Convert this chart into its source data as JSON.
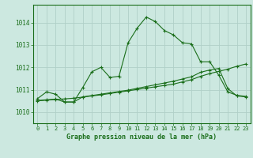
{
  "bg_color": "#cce8e0",
  "grid_color": "#b0d0c8",
  "line_color": "#1a6e1a",
  "title": "Graphe pression niveau de la mer (hPa)",
  "xlim": [
    -0.5,
    23.5
  ],
  "ylim": [
    1009.5,
    1014.8
  ],
  "yticks": [
    1010,
    1011,
    1012,
    1013,
    1014
  ],
  "xticks": [
    0,
    1,
    2,
    3,
    4,
    5,
    6,
    7,
    8,
    9,
    10,
    11,
    12,
    13,
    14,
    15,
    16,
    17,
    18,
    19,
    20,
    21,
    22,
    23
  ],
  "line1_x": [
    0,
    1,
    2,
    3,
    4,
    5,
    6,
    7,
    8,
    9,
    10,
    11,
    12,
    13,
    14,
    15,
    16,
    17,
    18,
    19,
    20,
    21,
    22,
    23
  ],
  "line1_y": [
    1010.6,
    1010.9,
    1010.8,
    1010.45,
    1010.45,
    1011.1,
    1011.8,
    1012.0,
    1011.55,
    1011.6,
    1013.1,
    1013.75,
    1014.25,
    1014.05,
    1013.65,
    1013.45,
    1013.1,
    1013.05,
    1012.25,
    1012.25,
    1011.65,
    1010.9,
    1010.75,
    1010.7
  ],
  "line2_x": [
    0,
    1,
    2,
    3,
    4,
    5,
    6,
    7,
    8,
    9,
    10,
    11,
    12,
    13,
    14,
    15,
    16,
    17,
    18,
    19,
    20,
    21,
    22,
    23
  ],
  "line2_y": [
    1010.5,
    1010.53,
    1010.56,
    1010.59,
    1010.62,
    1010.67,
    1010.72,
    1010.77,
    1010.83,
    1010.89,
    1010.95,
    1011.01,
    1011.07,
    1011.13,
    1011.19,
    1011.25,
    1011.35,
    1011.45,
    1011.6,
    1011.72,
    1011.82,
    1011.92,
    1012.05,
    1012.15
  ],
  "line3_x": [
    0,
    1,
    2,
    3,
    4,
    5,
    6,
    7,
    8,
    9,
    10,
    11,
    12,
    13,
    14,
    15,
    16,
    17,
    18,
    19,
    20,
    21,
    22,
    23
  ],
  "line3_y": [
    1010.52,
    1010.55,
    1010.58,
    1010.45,
    1010.45,
    1010.68,
    1010.74,
    1010.8,
    1010.86,
    1010.92,
    1010.98,
    1011.06,
    1011.14,
    1011.22,
    1011.3,
    1011.38,
    1011.48,
    1011.58,
    1011.78,
    1011.88,
    1011.95,
    1011.05,
    1010.72,
    1010.68
  ],
  "marker": "+",
  "markersize": 3,
  "linewidth": 0.8
}
